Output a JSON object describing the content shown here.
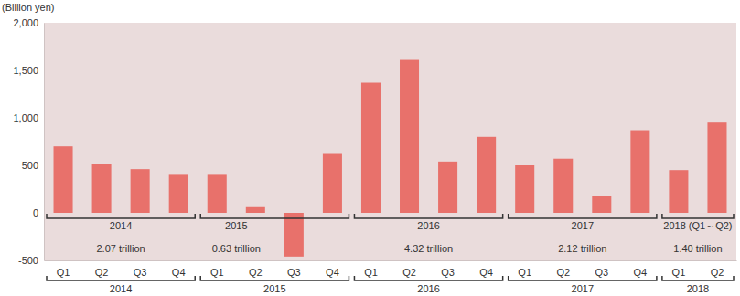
{
  "chart_data": {
    "type": "bar",
    "y_label": "(Billion yen)",
    "categories": [
      "Q1",
      "Q2",
      "Q3",
      "Q4",
      "Q1",
      "Q2",
      "Q3",
      "Q4",
      "Q1",
      "Q2",
      "Q3",
      "Q4",
      "Q1",
      "Q2",
      "Q3",
      "Q4",
      "Q1",
      "Q2"
    ],
    "values": [
      700,
      510,
      460,
      400,
      400,
      60,
      -460,
      620,
      1370,
      1610,
      540,
      800,
      500,
      570,
      180,
      870,
      450,
      950
    ],
    "color": "#e8716b",
    "ylim": [
      -500,
      2000
    ],
    "yticks": [
      -500,
      0,
      500,
      {
        "value": 1000,
        "label": "1,000"
      },
      {
        "value": 1500,
        "label": "1,500"
      },
      {
        "value": 2000,
        "label": "2,000"
      }
    ],
    "grid": false,
    "x_groups": [
      {
        "label": "2014",
        "size": 4
      },
      {
        "label": "2015",
        "size": 4
      },
      {
        "label": "2016",
        "size": 4
      },
      {
        "label": "2017",
        "size": 4
      },
      {
        "label": "2018",
        "size": 2
      }
    ],
    "annotations": [
      {
        "label": "2014",
        "note": "2.07 trillion"
      },
      {
        "label": "2015",
        "note": "0.63 trillion"
      },
      {
        "label": "2016",
        "note": "4.32 trillion"
      },
      {
        "label": "2017",
        "note": "2.12 trillion"
      },
      {
        "label": "2018 (Q1～Q2)",
        "note": "1.40 trillion"
      }
    ]
  }
}
